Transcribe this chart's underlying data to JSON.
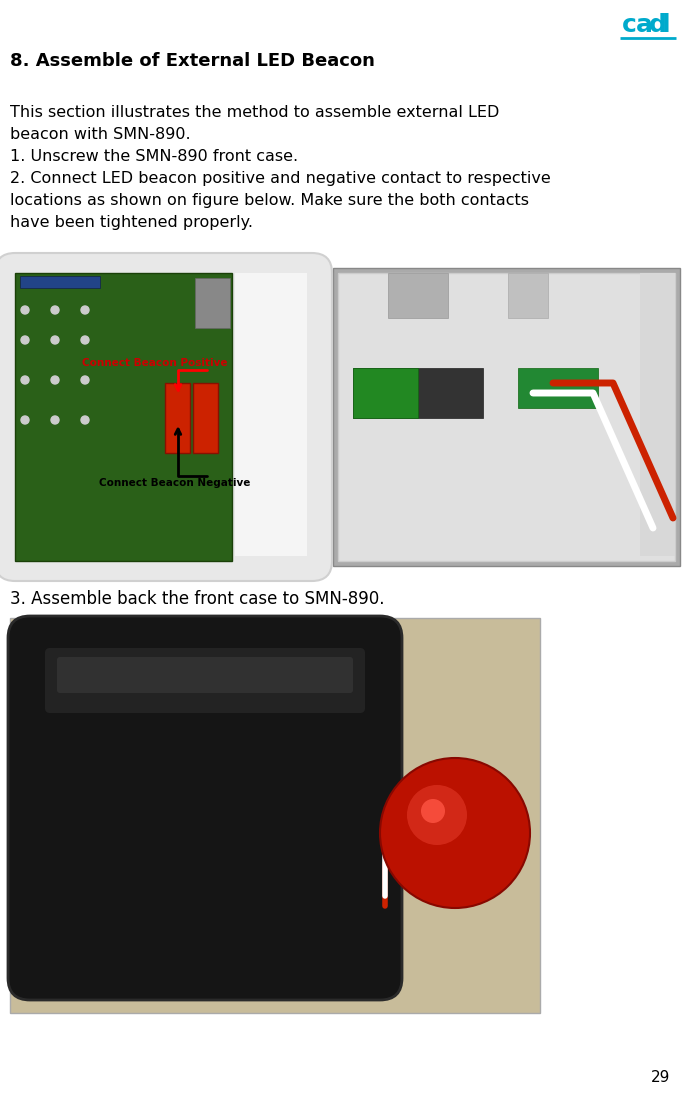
{
  "title": "8. Assemble of External LED Beacon",
  "page_number": "29",
  "body_text": [
    "This section illustrates the method to assemble external LED",
    "beacon with SMN-890.",
    "1. Unscrew the SMN-890 front case.",
    "2. Connect LED beacon positive and negative contact to respective",
    "locations as shown on figure below. Make sure the both contacts",
    "have been tightened properly."
  ],
  "step3_text": "3. Assemble back the front case to SMN-890.",
  "label_positive": "Connect Beacon Positive",
  "label_negative": "Connect Beacon Negative",
  "bg_color": "#ffffff",
  "title_color": "#000000",
  "body_color": "#000000",
  "label_pos_color": "#cc0000",
  "label_neg_color": "#000000",
  "logo_color": "#00aacc",
  "page_num_color": "#000000",
  "title_fontsize": 13,
  "body_fontsize": 11.5,
  "step3_fontsize": 12,
  "pagenum_fontsize": 11
}
